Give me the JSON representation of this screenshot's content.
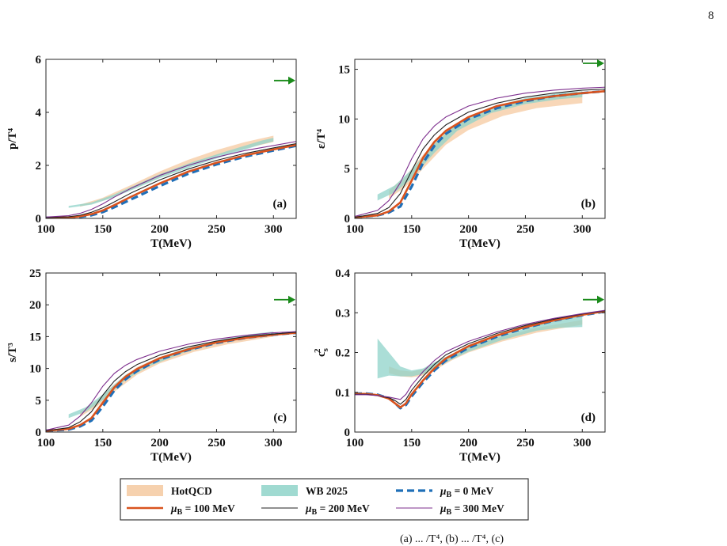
{
  "page_number": "8",
  "caption_fragment": "(a) ... /T⁴, (b) ... /T⁴, (c)",
  "legend": {
    "items": [
      {
        "label": "HotQCD",
        "style": "band",
        "color": "#f5c9a0"
      },
      {
        "label": "WB 2025",
        "style": "band",
        "color": "#8fd3c9"
      },
      {
        "label_prefix": "μ",
        "label_sub": "B",
        "label_suffix": " = 0 MeV",
        "style": "dashed-thick",
        "color": "#1f6fb8"
      },
      {
        "label_prefix": "μ",
        "label_sub": "B",
        "label_suffix": " = 100 MeV",
        "style": "solid-thick",
        "color": "#d9531e"
      },
      {
        "label_prefix": "μ",
        "label_sub": "B",
        "label_suffix": " = 200 MeV",
        "style": "solid-thin",
        "color": "#222222"
      },
      {
        "label_prefix": "μ",
        "label_sub": "B",
        "label_suffix": " = 300 MeV",
        "style": "solid-thin",
        "color": "#7e2f8e"
      }
    ]
  },
  "chart_data": [
    {
      "type": "line",
      "panel_label": "(a)",
      "ylabel": "p/T⁴",
      "xlabel": "T(MeV)",
      "xlim": [
        100,
        320
      ],
      "ylim": [
        0,
        6
      ],
      "xticks": [
        100,
        150,
        200,
        250,
        300
      ],
      "yticks": [
        0,
        2,
        4,
        6
      ],
      "arrow_y": 5.2,
      "bands": [
        {
          "name": "HotQCD",
          "x": [
            130,
            150,
            175,
            200,
            225,
            250,
            275,
            300
          ],
          "lower": [
            0.44,
            0.66,
            1.08,
            1.55,
            1.98,
            2.36,
            2.64,
            2.88
          ],
          "upper": [
            0.52,
            0.78,
            1.26,
            1.77,
            2.21,
            2.58,
            2.88,
            3.12
          ]
        },
        {
          "name": "WB 2025",
          "x": [
            120,
            140,
            160,
            180,
            200,
            230,
            260,
            290,
            300
          ],
          "lower": [
            0.4,
            0.52,
            0.8,
            1.15,
            1.52,
            1.98,
            2.4,
            2.8,
            2.9
          ],
          "upper": [
            0.47,
            0.6,
            0.9,
            1.28,
            1.67,
            2.14,
            2.55,
            2.94,
            3.04
          ]
        }
      ],
      "series": [
        {
          "name": "μB = 0 MeV",
          "x": [
            100,
            120,
            130,
            140,
            150,
            160,
            175,
            200,
            225,
            250,
            275,
            300,
            320
          ],
          "y": [
            0.02,
            0.03,
            0.06,
            0.12,
            0.24,
            0.42,
            0.72,
            1.22,
            1.68,
            2.04,
            2.33,
            2.56,
            2.74
          ]
        },
        {
          "name": "μB = 100 MeV",
          "x": [
            100,
            120,
            130,
            140,
            150,
            160,
            175,
            200,
            225,
            250,
            275,
            300,
            320
          ],
          "y": [
            0.02,
            0.04,
            0.08,
            0.16,
            0.3,
            0.5,
            0.82,
            1.32,
            1.76,
            2.1,
            2.38,
            2.6,
            2.77
          ]
        },
        {
          "name": "μB = 200 MeV",
          "x": [
            100,
            120,
            130,
            140,
            150,
            160,
            175,
            200,
            225,
            250,
            275,
            300,
            320
          ],
          "y": [
            0.03,
            0.06,
            0.12,
            0.23,
            0.4,
            0.62,
            0.96,
            1.45,
            1.86,
            2.19,
            2.45,
            2.66,
            2.82
          ]
        },
        {
          "name": "μB = 300 MeV",
          "x": [
            100,
            120,
            130,
            140,
            150,
            160,
            175,
            200,
            225,
            250,
            275,
            300,
            320
          ],
          "y": [
            0.05,
            0.1,
            0.19,
            0.34,
            0.55,
            0.8,
            1.14,
            1.62,
            2.0,
            2.31,
            2.56,
            2.75,
            2.9
          ]
        }
      ]
    },
    {
      "type": "line",
      "panel_label": "(b)",
      "ylabel": "ε/T⁴",
      "xlabel": "T(MeV)",
      "xlim": [
        100,
        320
      ],
      "ylim": [
        0,
        16
      ],
      "xticks": [
        100,
        150,
        200,
        250,
        300
      ],
      "yticks": [
        0,
        5,
        10,
        15
      ],
      "arrow_y": 15.6,
      "bands": [
        {
          "name": "HotQCD",
          "x": [
            130,
            145,
            160,
            180,
            200,
            230,
            260,
            300
          ],
          "lower": [
            2.0,
            3.2,
            5.0,
            7.4,
            8.9,
            10.3,
            11.1,
            11.6
          ],
          "upper": [
            2.8,
            4.3,
            6.4,
            8.7,
            10.0,
            11.3,
            12.0,
            12.5
          ]
        },
        {
          "name": "WB 2025",
          "x": [
            120,
            135,
            150,
            170,
            190,
            220,
            250,
            280,
            300
          ],
          "lower": [
            1.8,
            2.6,
            4.0,
            6.6,
            8.8,
            10.6,
            11.5,
            12.0,
            12.2
          ],
          "upper": [
            2.4,
            3.3,
            4.9,
            7.5,
            9.6,
            11.2,
            12.1,
            12.6,
            12.8
          ]
        }
      ],
      "series": [
        {
          "name": "μB = 0 MeV",
          "x": [
            100,
            120,
            130,
            140,
            150,
            160,
            170,
            180,
            200,
            225,
            250,
            275,
            300,
            320
          ],
          "y": [
            0.1,
            0.3,
            0.6,
            1.2,
            3.2,
            5.6,
            7.3,
            8.5,
            10.0,
            11.1,
            11.8,
            12.3,
            12.6,
            12.8
          ]
        },
        {
          "name": "μB = 100 MeV",
          "x": [
            100,
            120,
            130,
            140,
            150,
            160,
            170,
            180,
            200,
            225,
            250,
            275,
            300,
            320
          ],
          "y": [
            0.1,
            0.3,
            0.7,
            1.6,
            3.8,
            6.1,
            7.7,
            8.8,
            10.2,
            11.3,
            11.9,
            12.3,
            12.6,
            12.8
          ]
        },
        {
          "name": "μB = 200 MeV",
          "x": [
            100,
            120,
            130,
            140,
            150,
            160,
            170,
            180,
            200,
            225,
            250,
            275,
            300,
            320
          ],
          "y": [
            0.1,
            0.5,
            1.1,
            2.5,
            4.8,
            7.0,
            8.4,
            9.4,
            10.7,
            11.6,
            12.2,
            12.6,
            12.9,
            13.0
          ]
        },
        {
          "name": "μB = 300 MeV",
          "x": [
            100,
            120,
            130,
            140,
            150,
            160,
            170,
            180,
            200,
            225,
            250,
            275,
            300,
            320
          ],
          "y": [
            0.2,
            0.8,
            1.8,
            3.6,
            6.0,
            8.0,
            9.3,
            10.2,
            11.3,
            12.1,
            12.6,
            12.9,
            13.1,
            13.2
          ]
        }
      ]
    },
    {
      "type": "line",
      "panel_label": "(c)",
      "ylabel": "s/T³",
      "xlabel": "T(MeV)",
      "xlim": [
        100,
        320
      ],
      "ylim": [
        0,
        25
      ],
      "xticks": [
        100,
        150,
        200,
        250,
        300
      ],
      "yticks": [
        0,
        5,
        10,
        15,
        20,
        25
      ],
      "arrow_y": 20.8,
      "bands": [
        {
          "name": "HotQCD",
          "x": [
            130,
            145,
            160,
            180,
            200,
            230,
            260,
            300
          ],
          "lower": [
            2.4,
            4.0,
            6.3,
            9.0,
            10.8,
            12.6,
            13.8,
            15.0
          ],
          "upper": [
            3.2,
            5.0,
            7.5,
            10.2,
            11.8,
            13.5,
            14.6,
            15.7
          ]
        },
        {
          "name": "WB 2025",
          "x": [
            120,
            135,
            150,
            170,
            190,
            220,
            250,
            280,
            300
          ],
          "lower": [
            2.2,
            3.2,
            5.0,
            8.2,
            10.3,
            12.4,
            13.9,
            14.9,
            15.3
          ],
          "upper": [
            2.8,
            3.9,
            5.9,
            9.0,
            11.0,
            13.0,
            14.4,
            15.4,
            15.8
          ]
        }
      ],
      "series": [
        {
          "name": "μB = 0 MeV",
          "x": [
            100,
            120,
            130,
            140,
            150,
            160,
            170,
            180,
            200,
            225,
            250,
            275,
            300,
            320
          ],
          "y": [
            0.2,
            0.4,
            0.9,
            1.8,
            4.0,
            6.5,
            8.3,
            9.6,
            11.4,
            12.9,
            14.0,
            14.8,
            15.3,
            15.6
          ]
        },
        {
          "name": "μB = 100 MeV",
          "x": [
            100,
            120,
            130,
            140,
            150,
            160,
            170,
            180,
            200,
            225,
            250,
            275,
            300,
            320
          ],
          "y": [
            0.2,
            0.5,
            1.1,
            2.2,
            4.6,
            7.0,
            8.7,
            9.9,
            11.6,
            13.0,
            14.1,
            14.8,
            15.3,
            15.6
          ]
        },
        {
          "name": "μB = 200 MeV",
          "x": [
            100,
            120,
            130,
            140,
            150,
            160,
            170,
            180,
            200,
            225,
            250,
            275,
            300,
            320
          ],
          "y": [
            0.2,
            0.7,
            1.6,
            3.2,
            5.8,
            8.0,
            9.5,
            10.6,
            12.1,
            13.4,
            14.3,
            15.0,
            15.4,
            15.7
          ]
        },
        {
          "name": "μB = 300 MeV",
          "x": [
            100,
            120,
            130,
            140,
            150,
            160,
            170,
            180,
            200,
            225,
            250,
            275,
            300,
            320
          ],
          "y": [
            0.3,
            1.1,
            2.5,
            4.6,
            7.2,
            9.2,
            10.5,
            11.4,
            12.7,
            13.8,
            14.6,
            15.2,
            15.6,
            15.8
          ]
        }
      ]
    },
    {
      "type": "line",
      "panel_label": "(d)",
      "ylabel": "c_s²",
      "xlabel": "T(MeV)",
      "xlim": [
        100,
        320
      ],
      "ylim": [
        0,
        0.4
      ],
      "xticks": [
        100,
        150,
        200,
        250,
        300
      ],
      "yticks": [
        0,
        0.1,
        0.2,
        0.3,
        0.4
      ],
      "ytick_labels": [
        "0",
        "0.1",
        "0.2",
        "0.3",
        "0.4"
      ],
      "arrow_y": 0.333,
      "bands": [
        {
          "name": "HotQCD",
          "x": [
            130,
            140,
            150,
            160,
            170,
            185,
            200,
            230,
            260,
            300
          ],
          "lower": [
            0.148,
            0.14,
            0.138,
            0.142,
            0.155,
            0.18,
            0.2,
            0.228,
            0.25,
            0.27
          ],
          "upper": [
            0.165,
            0.155,
            0.152,
            0.158,
            0.172,
            0.195,
            0.214,
            0.24,
            0.262,
            0.282
          ]
        },
        {
          "name": "WB 2025",
          "x": [
            120,
            130,
            140,
            150,
            160,
            170,
            185,
            200,
            230,
            260,
            280,
            300
          ],
          "lower": [
            0.135,
            0.142,
            0.14,
            0.14,
            0.146,
            0.16,
            0.182,
            0.202,
            0.232,
            0.255,
            0.262,
            0.264
          ],
          "upper": [
            0.235,
            0.2,
            0.165,
            0.155,
            0.16,
            0.175,
            0.196,
            0.214,
            0.244,
            0.268,
            0.282,
            0.295
          ]
        }
      ],
      "series": [
        {
          "name": "μB = 0 MeV",
          "x": [
            100,
            110,
            120,
            130,
            135,
            140,
            145,
            150,
            160,
            170,
            180,
            200,
            225,
            250,
            275,
            300,
            320
          ],
          "y": [
            0.097,
            0.097,
            0.094,
            0.085,
            0.074,
            0.06,
            0.068,
            0.09,
            0.125,
            0.155,
            0.18,
            0.212,
            0.24,
            0.262,
            0.28,
            0.294,
            0.303
          ]
        },
        {
          "name": "μB = 100 MeV",
          "x": [
            100,
            110,
            120,
            130,
            135,
            140,
            145,
            150,
            160,
            170,
            180,
            200,
            225,
            250,
            275,
            300,
            320
          ],
          "y": [
            0.096,
            0.096,
            0.093,
            0.084,
            0.073,
            0.062,
            0.072,
            0.095,
            0.13,
            0.16,
            0.185,
            0.216,
            0.243,
            0.264,
            0.281,
            0.295,
            0.304
          ]
        },
        {
          "name": "μB = 200 MeV",
          "x": [
            100,
            110,
            120,
            130,
            135,
            140,
            145,
            150,
            160,
            170,
            180,
            200,
            225,
            250,
            275,
            300,
            320
          ],
          "y": [
            0.095,
            0.095,
            0.092,
            0.086,
            0.08,
            0.07,
            0.082,
            0.105,
            0.14,
            0.17,
            0.194,
            0.222,
            0.248,
            0.268,
            0.284,
            0.297,
            0.305
          ]
        },
        {
          "name": "μB = 300 MeV",
          "x": [
            100,
            110,
            120,
            130,
            135,
            140,
            145,
            150,
            160,
            170,
            180,
            200,
            225,
            250,
            275,
            300,
            320
          ],
          "y": [
            0.094,
            0.094,
            0.092,
            0.088,
            0.085,
            0.082,
            0.095,
            0.118,
            0.152,
            0.18,
            0.202,
            0.228,
            0.252,
            0.271,
            0.286,
            0.298,
            0.306
          ]
        }
      ]
    }
  ]
}
